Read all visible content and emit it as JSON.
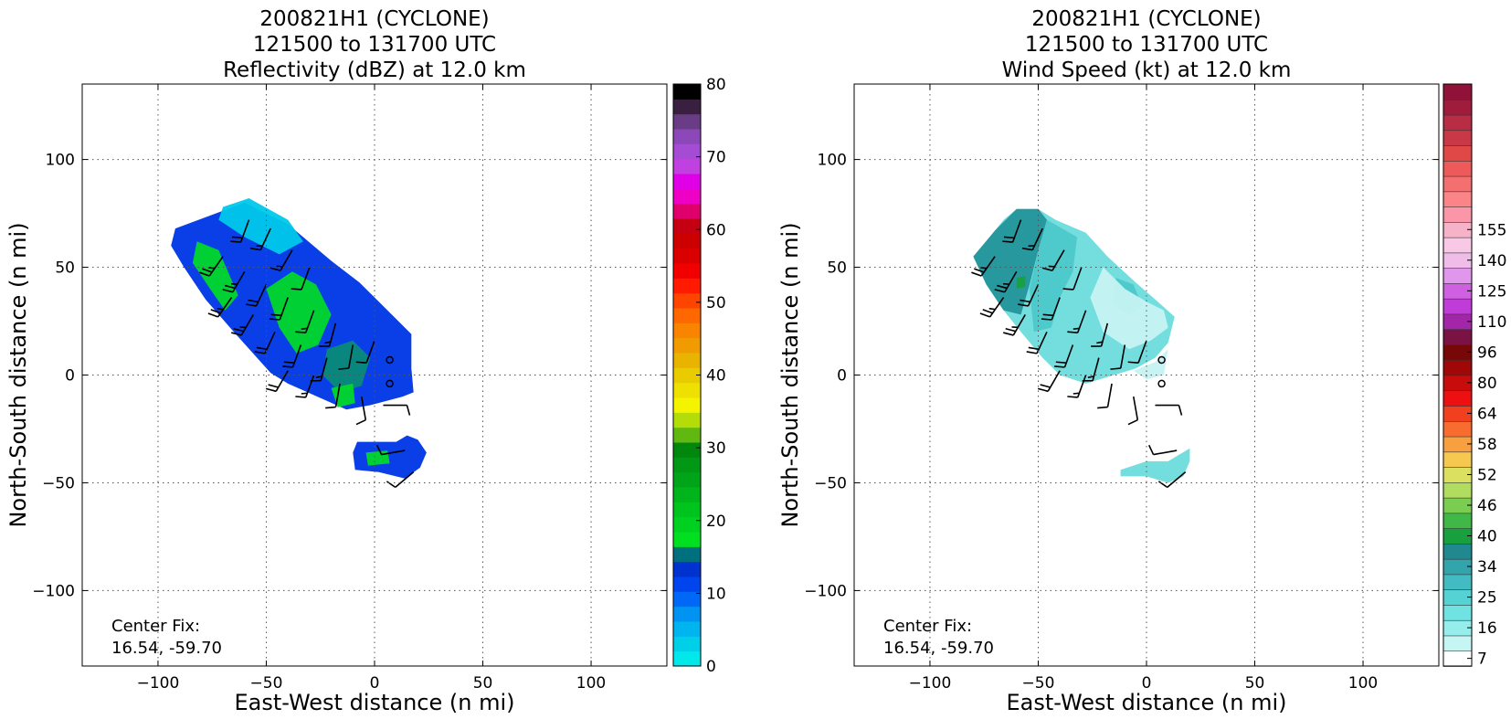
{
  "chart_data": [
    {
      "type": "heatmap",
      "title": [
        "200821H1 (CYCLONE)",
        "121500 to 131700 UTC",
        "Reflectivity (dBZ) at 12.0 km"
      ],
      "xlabel": "East-West distance (n mi)",
      "ylabel": "North-South distance (n mi)",
      "xlim": [
        -135,
        135
      ],
      "ylim": [
        -135,
        135
      ],
      "xticks": [
        -100,
        -50,
        0,
        50,
        100
      ],
      "yticks": [
        -100,
        -50,
        0,
        50,
        100
      ],
      "grid": true,
      "annotation": [
        "Center Fix:",
        "16.54, -59.70"
      ],
      "colorbar": {
        "min": 0,
        "max": 80,
        "tick_values": [
          0,
          10,
          20,
          30,
          40,
          50,
          60,
          70,
          80
        ],
        "tick_labels": [
          "0",
          "10",
          "20",
          "30",
          "40",
          "50",
          "60",
          "70",
          "80"
        ],
        "colors": [
          "#00e8ea",
          "#00cfe8",
          "#00b4f0",
          "#0093f2",
          "#0068f6",
          "#0044ee",
          "#0032d0",
          "#00707e",
          "#00e020",
          "#00d020",
          "#00c41e",
          "#00b41c",
          "#00a418",
          "#009814",
          "#00880e",
          "#60b810",
          "#b4dc08",
          "#f4f400",
          "#eee000",
          "#e8cc00",
          "#e8b400",
          "#f09c00",
          "#f88400",
          "#ff6800",
          "#ff4400",
          "#ff1a00",
          "#f20000",
          "#da0000",
          "#cc0000",
          "#c40012",
          "#e0006c",
          "#ee00c4",
          "#e000e8",
          "#c040e0",
          "#a44cd4",
          "#8c48b8",
          "#6a3c86",
          "#3a2040",
          "#000000"
        ]
      },
      "field": {
        "main_polygon": [
          [
            -92,
            68
          ],
          [
            -60,
            80
          ],
          [
            -40,
            70
          ],
          [
            -20,
            53
          ],
          [
            -7,
            43
          ],
          [
            3,
            33
          ],
          [
            17,
            19
          ],
          [
            17,
            3
          ],
          [
            18,
            -8
          ],
          [
            13,
            -10
          ],
          [
            -2,
            -14
          ],
          [
            -13,
            -16
          ],
          [
            -40,
            -4
          ],
          [
            -48,
            1
          ],
          [
            -65,
            20
          ],
          [
            -78,
            35
          ],
          [
            -88,
            50
          ],
          [
            -94,
            60
          ]
        ],
        "small_polygon": [
          [
            -8,
            -31
          ],
          [
            10,
            -31
          ],
          [
            15,
            -28
          ],
          [
            20,
            -30
          ],
          [
            24,
            -36
          ],
          [
            21,
            -43
          ],
          [
            14,
            -48
          ],
          [
            2,
            -45
          ],
          [
            -9,
            -44
          ],
          [
            -10,
            -36
          ]
        ],
        "dbz_patches": [
          {
            "level": "light",
            "points": [
              [
                -70,
                78
              ],
              [
                -58,
                82
              ],
              [
                -40,
                72
              ],
              [
                -33,
                62
              ],
              [
                -44,
                56
              ],
              [
                -60,
                64
              ],
              [
                -72,
                72
              ]
            ]
          },
          {
            "level": "green",
            "points": [
              [
                -82,
                62
              ],
              [
                -72,
                58
              ],
              [
                -66,
                44
              ],
              [
                -63,
                37
              ],
              [
                -69,
                30
              ],
              [
                -76,
                40
              ],
              [
                -84,
                52
              ]
            ]
          },
          {
            "level": "green",
            "points": [
              [
                -50,
                40
              ],
              [
                -38,
                48
              ],
              [
                -27,
                42
              ],
              [
                -20,
                28
              ],
              [
                -26,
                14
              ],
              [
                -36,
                10
              ],
              [
                -44,
                22
              ]
            ]
          },
          {
            "level": "teal",
            "points": [
              [
                -22,
                12
              ],
              [
                -10,
                16
              ],
              [
                -2,
                8
              ],
              [
                -6,
                -5
              ],
              [
                -16,
                -8
              ],
              [
                -24,
                0
              ]
            ]
          },
          {
            "level": "green",
            "points": [
              [
                -20,
                -6
              ],
              [
                -10,
                -4
              ],
              [
                -9,
                -13
              ],
              [
                -17,
                -15
              ]
            ]
          },
          {
            "level": "green",
            "points": [
              [
                -4,
                -36
              ],
              [
                6,
                -35
              ],
              [
                7,
                -41
              ],
              [
                -3,
                -42
              ]
            ]
          }
        ]
      },
      "wind_barbs": [
        {
          "x": -58,
          "y": 72,
          "dir": 200,
          "kt": 20
        },
        {
          "x": -48,
          "y": 68,
          "dir": 205,
          "kt": 15
        },
        {
          "x": -38,
          "y": 58,
          "dir": 210,
          "kt": 15
        },
        {
          "x": -30,
          "y": 50,
          "dir": 200,
          "kt": 10
        },
        {
          "x": -70,
          "y": 55,
          "dir": 215,
          "kt": 25
        },
        {
          "x": -60,
          "y": 48,
          "dir": 210,
          "kt": 25
        },
        {
          "x": -50,
          "y": 42,
          "dir": 205,
          "kt": 20
        },
        {
          "x": -40,
          "y": 36,
          "dir": 200,
          "kt": 20
        },
        {
          "x": -28,
          "y": 30,
          "dir": 200,
          "kt": 15
        },
        {
          "x": -18,
          "y": 24,
          "dir": 195,
          "kt": 15
        },
        {
          "x": -66,
          "y": 36,
          "dir": 215,
          "kt": 25
        },
        {
          "x": -56,
          "y": 28,
          "dir": 210,
          "kt": 25
        },
        {
          "x": -46,
          "y": 20,
          "dir": 205,
          "kt": 20
        },
        {
          "x": -34,
          "y": 14,
          "dir": 200,
          "kt": 20
        },
        {
          "x": -22,
          "y": 8,
          "dir": 195,
          "kt": 15
        },
        {
          "x": -10,
          "y": 14,
          "dir": 190,
          "kt": 10
        },
        {
          "x": -40,
          "y": 2,
          "dir": 210,
          "kt": 20
        },
        {
          "x": -28,
          "y": 0,
          "dir": 200,
          "kt": 15
        },
        {
          "x": -16,
          "y": -4,
          "dir": 190,
          "kt": 10
        },
        {
          "x": -6,
          "y": -10,
          "dir": 170,
          "kt": 10
        },
        {
          "x": 0,
          "y": 16,
          "dir": 200,
          "kt": 10
        },
        {
          "x": 4,
          "y": -14,
          "dir": 90,
          "kt": 10
        },
        {
          "x": 14,
          "y": -35,
          "dir": 260,
          "kt": 10
        },
        {
          "x": 18,
          "y": -45,
          "dir": 230,
          "kt": 10
        }
      ],
      "calm_markers": [
        {
          "x": 7,
          "y": 7
        },
        {
          "x": 7,
          "y": -4
        }
      ]
    },
    {
      "type": "heatmap",
      "title": [
        "200821H1 (CYCLONE)",
        "121500 to 131700 UTC",
        "Wind Speed (kt) at 12.0 km"
      ],
      "xlabel": "East-West distance (n mi)",
      "ylabel": "North-South distance (n mi)",
      "xlim": [
        -135,
        135
      ],
      "ylim": [
        -135,
        135
      ],
      "xticks": [
        -100,
        -50,
        0,
        50,
        100
      ],
      "yticks": [
        -100,
        -50,
        0,
        50,
        100
      ],
      "grid": true,
      "annotation": [
        "Center Fix:",
        "16.54, -59.70"
      ],
      "colorbar": {
        "min": 7,
        "max": 155,
        "tick_values": [
          7,
          16,
          25,
          34,
          40,
          46,
          52,
          58,
          64,
          80,
          96,
          110,
          125,
          140,
          155
        ],
        "tick_labels": [
          "7",
          "16",
          "25",
          "34",
          "40",
          "46",
          "52",
          "58",
          "64",
          "80",
          "96",
          "110",
          "125",
          "140",
          "155"
        ],
        "tick_slots": [
          0,
          2,
          4,
          6,
          8,
          10,
          12,
          14,
          16,
          18,
          20,
          22,
          24,
          26,
          28
        ],
        "colors": [
          "#ffffff",
          "#c6f6f4",
          "#96eeec",
          "#70e2e2",
          "#54d2d4",
          "#42bcc2",
          "#32a4ac",
          "#228890",
          "#18a03e",
          "#40b848",
          "#7acd50",
          "#b0dc60",
          "#dce060",
          "#f6c850",
          "#f8a040",
          "#f86c30",
          "#f04020",
          "#ee1010",
          "#c80c0c",
          "#a00808",
          "#780808",
          "#7a1244",
          "#a426a8",
          "#c03cd8",
          "#d060e2",
          "#e096ea",
          "#f0bce8",
          "#f8c8e6",
          "#f6b2c8",
          "#fa96a8",
          "#fa8488",
          "#f47070",
          "#ee5a5a",
          "#e04848",
          "#c83846",
          "#b82c44",
          "#a01c3c",
          "#901238"
        ]
      },
      "field": {
        "main_polygon": [
          [
            -80,
            55
          ],
          [
            -74,
            62
          ],
          [
            -66,
            72
          ],
          [
            -60,
            77
          ],
          [
            -50,
            77
          ],
          [
            -42,
            72
          ],
          [
            -28,
            66
          ],
          [
            -18,
            55
          ],
          [
            -5,
            43
          ],
          [
            3,
            36
          ],
          [
            13,
            27
          ],
          [
            10,
            15
          ],
          [
            4,
            8
          ],
          [
            -5,
            3
          ],
          [
            -15,
            0
          ],
          [
            -28,
            -4
          ],
          [
            -40,
            0
          ],
          [
            -48,
            8
          ],
          [
            -58,
            20
          ],
          [
            -66,
            30
          ],
          [
            -74,
            42
          ]
        ],
        "small_polygon": [
          [
            -12,
            -44
          ],
          [
            0,
            -40
          ],
          [
            10,
            -40
          ],
          [
            20,
            -34
          ],
          [
            20,
            -40
          ],
          [
            17,
            -47
          ],
          [
            10,
            -50
          ],
          [
            0,
            -47
          ],
          [
            -12,
            -47
          ]
        ],
        "speed_patches": [
          {
            "level": "dark",
            "points": [
              [
                -80,
                55
              ],
              [
                -70,
                67
              ],
              [
                -60,
                77
              ],
              [
                -50,
                77
              ],
              [
                -46,
                72
              ],
              [
                -50,
                58
              ],
              [
                -54,
                42
              ],
              [
                -58,
                28
              ],
              [
                -66,
                30
              ],
              [
                -74,
                42
              ]
            ]
          },
          {
            "level": "mid",
            "points": [
              [
                -46,
                72
              ],
              [
                -32,
                64
              ],
              [
                -34,
                48
              ],
              [
                -40,
                36
              ],
              [
                -44,
                22
              ],
              [
                -52,
                20
              ],
              [
                -54,
                40
              ],
              [
                -50,
                58
              ]
            ]
          },
          {
            "level": "mid",
            "points": [
              [
                -14,
                45
              ],
              [
                -6,
                42
              ],
              [
                -2,
                32
              ],
              [
                -8,
                28
              ],
              [
                -16,
                33
              ]
            ]
          },
          {
            "level": "pale",
            "points": [
              [
                -20,
                50
              ],
              [
                -10,
                40
              ],
              [
                0,
                34
              ],
              [
                8,
                30
              ],
              [
                10,
                22
              ],
              [
                2,
                16
              ],
              [
                -8,
                12
              ],
              [
                -20,
                20
              ],
              [
                -26,
                36
              ]
            ]
          },
          {
            "level": "pale",
            "points": [
              [
                -6,
                2
              ],
              [
                4,
                6
              ],
              [
                10,
                12
              ],
              [
                8,
                0
              ],
              [
                0,
                -2
              ]
            ]
          },
          {
            "level": "green",
            "points": [
              [
                -60,
                45
              ],
              [
                -56,
                46
              ],
              [
                -56,
                41
              ],
              [
                -60,
                40
              ]
            ]
          }
        ]
      },
      "wind_barbs": [
        {
          "x": -58,
          "y": 72,
          "dir": 200,
          "kt": 20
        },
        {
          "x": -48,
          "y": 68,
          "dir": 205,
          "kt": 15
        },
        {
          "x": -38,
          "y": 58,
          "dir": 210,
          "kt": 15
        },
        {
          "x": -30,
          "y": 50,
          "dir": 200,
          "kt": 10
        },
        {
          "x": -70,
          "y": 55,
          "dir": 215,
          "kt": 25
        },
        {
          "x": -60,
          "y": 48,
          "dir": 210,
          "kt": 25
        },
        {
          "x": -50,
          "y": 42,
          "dir": 205,
          "kt": 20
        },
        {
          "x": -40,
          "y": 36,
          "dir": 200,
          "kt": 20
        },
        {
          "x": -28,
          "y": 30,
          "dir": 200,
          "kt": 15
        },
        {
          "x": -18,
          "y": 24,
          "dir": 195,
          "kt": 15
        },
        {
          "x": -66,
          "y": 36,
          "dir": 215,
          "kt": 25
        },
        {
          "x": -56,
          "y": 28,
          "dir": 210,
          "kt": 25
        },
        {
          "x": -46,
          "y": 20,
          "dir": 205,
          "kt": 20
        },
        {
          "x": -34,
          "y": 14,
          "dir": 200,
          "kt": 20
        },
        {
          "x": -22,
          "y": 8,
          "dir": 195,
          "kt": 15
        },
        {
          "x": -10,
          "y": 14,
          "dir": 190,
          "kt": 10
        },
        {
          "x": -40,
          "y": 2,
          "dir": 210,
          "kt": 20
        },
        {
          "x": -28,
          "y": 0,
          "dir": 200,
          "kt": 15
        },
        {
          "x": -16,
          "y": -4,
          "dir": 190,
          "kt": 10
        },
        {
          "x": -6,
          "y": -10,
          "dir": 170,
          "kt": 10
        },
        {
          "x": 0,
          "y": 16,
          "dir": 200,
          "kt": 10
        },
        {
          "x": 4,
          "y": -14,
          "dir": 90,
          "kt": 10
        },
        {
          "x": 14,
          "y": -35,
          "dir": 260,
          "kt": 10
        },
        {
          "x": 18,
          "y": -45,
          "dir": 230,
          "kt": 10
        }
      ],
      "calm_markers": [
        {
          "x": 7,
          "y": 7
        },
        {
          "x": 7,
          "y": -4
        }
      ]
    }
  ]
}
